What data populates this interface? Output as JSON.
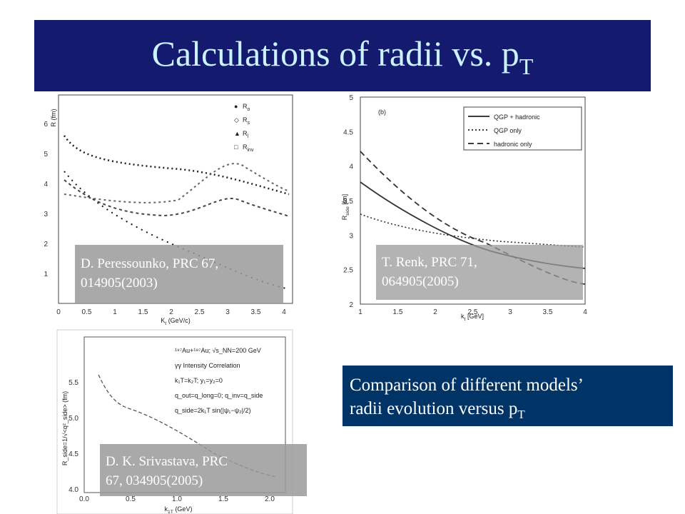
{
  "title": {
    "text": "Calculations of radii vs. p",
    "subscript": "T"
  },
  "panels": [
    {
      "ylabel": "R (fm)",
      "xlabel": "K",
      "xlabel_sub": "t",
      "xlabel_unit": " (GeV/c)",
      "xticks": [
        "0",
        "0.5",
        "1",
        "1.5",
        "2",
        "2.5",
        "3",
        "3.5",
        "4"
      ],
      "yticks": [
        "1",
        "2",
        "3",
        "4",
        "5",
        "6"
      ],
      "legend": [
        {
          "symbol": "R",
          "sub": "o"
        },
        {
          "symbol": "R",
          "sub": "s"
        },
        {
          "symbol": "R",
          "sub": "l"
        },
        {
          "symbol": "R",
          "sub": "inv"
        }
      ],
      "caption": [
        "D. Peressounko, PRC 67,",
        "014905(2003)"
      ]
    },
    {
      "ylabel": "R",
      "ylabel_sub": "side",
      "ylabel_unit": " [fm]",
      "xlabel": "k",
      "xlabel_sub": "t",
      "xlabel_unit": " [GeV]",
      "tag": "(b)",
      "xticks": [
        "1",
        "1.5",
        "2",
        "2.5",
        "3",
        "3.5",
        "4"
      ],
      "yticks": [
        "2",
        "2.5",
        "3",
        "3.5",
        "4",
        "4.5",
        "5"
      ],
      "legend": [
        "QGP + hadronic",
        "QGP only",
        "hadronic only"
      ],
      "caption": [
        "T. Renk, PRC 71,",
        "064905(2005)"
      ]
    },
    {
      "ylabel": "R_side=1/√<q²_side> (fm)",
      "xlabel": "k",
      "xlabel_sub": "1T",
      "xlabel_unit": "  (GeV)",
      "xticks": [
        "0.0",
        "0.5",
        "1.0",
        "1.5",
        "2.0"
      ],
      "yticks": [
        "4.0",
        "4.5",
        "5.0",
        "5.5"
      ],
      "legend": [
        "¹⁹⁷Au+¹⁹⁷Au; √s_NN=200 GeV",
        "γγ Intensity Correlation",
        "k₁T=k₂T; y₁=y₂=0",
        "q_out=q_long=0; q_inv=q_side",
        "q_side=2k₁T sin(|ψ₁−ψ₂|/2)"
      ],
      "caption": [
        "D. K. Srivastava, PRC",
        "67, 034905(2005)"
      ]
    }
  ],
  "comparison": {
    "line1": "Comparison of different models’",
    "line2": "radii evolution versus p",
    "line2_sub": "T"
  }
}
